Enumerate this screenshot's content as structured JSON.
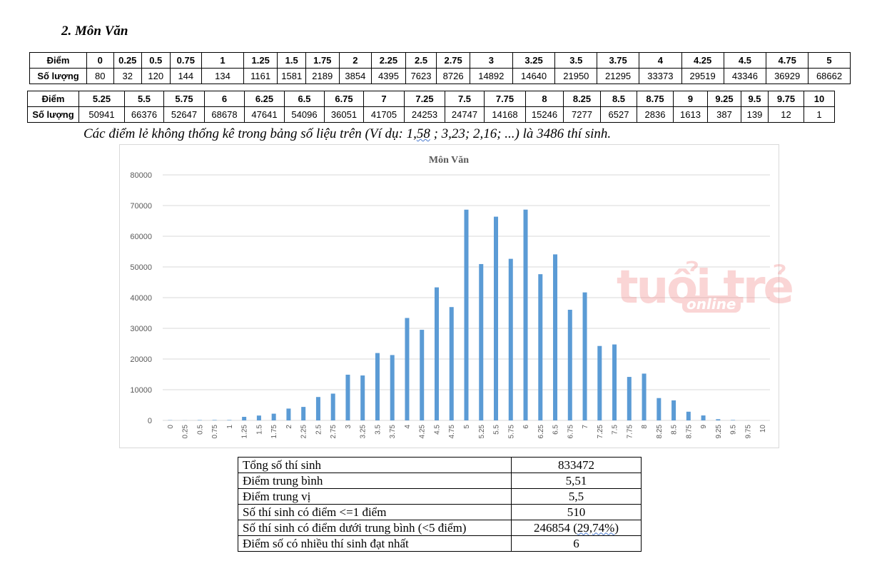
{
  "heading": "2.  Môn Văn",
  "table1": {
    "row_label_score": "Điểm",
    "row_label_count": "Số lượng",
    "scores": [
      "0",
      "0.25",
      "0.5",
      "0.75",
      "1",
      "1.25",
      "1.5",
      "1.75",
      "2",
      "2.25",
      "2.5",
      "2.75",
      "3",
      "3.25",
      "3.5",
      "3.75",
      "4",
      "4.25",
      "4.5",
      "4.75",
      "5"
    ],
    "counts": [
      "80",
      "32",
      "120",
      "144",
      "134",
      "1161",
      "1581",
      "2189",
      "3854",
      "4395",
      "7623",
      "8726",
      "14892",
      "14640",
      "21950",
      "21295",
      "33373",
      "29519",
      "43346",
      "36929",
      "68662"
    ]
  },
  "table2": {
    "row_label_score": "Điểm",
    "row_label_count": "Số lượng",
    "scores": [
      "5.25",
      "5.5",
      "5.75",
      "6",
      "6.25",
      "6.5",
      "6.75",
      "7",
      "7.25",
      "7.5",
      "7.75",
      "8",
      "8.25",
      "8.5",
      "8.75",
      "9",
      "9.25",
      "9.5",
      "9.75",
      "10"
    ],
    "counts": [
      "50941",
      "66376",
      "52647",
      "68678",
      "47641",
      "54096",
      "36051",
      "41705",
      "24253",
      "24747",
      "14168",
      "15246",
      "7277",
      "6527",
      "2836",
      "1613",
      "387",
      "139",
      "12",
      "1"
    ]
  },
  "note": {
    "part1": "Các điểm lẻ không thống kê trong bảng số liệu trên (Ví dụ: 1,",
    "u1": "58",
    "part2": " ; 3,23; 2,16; ...) là 3486 thí sinh."
  },
  "watermark": {
    "main": "tuổi trẻ",
    "sub": "online"
  },
  "chart_data": {
    "type": "bar",
    "title": "Môn Văn",
    "categories": [
      "0",
      "0.25",
      "0.5",
      "0.75",
      "1",
      "1.25",
      "1.5",
      "1.75",
      "2",
      "2.25",
      "2.5",
      "2.75",
      "3",
      "3.25",
      "3.5",
      "3.75",
      "4",
      "4.25",
      "4.5",
      "4.75",
      "5",
      "5.25",
      "5.5",
      "5.75",
      "6",
      "6.25",
      "6.5",
      "6.75",
      "7",
      "7.25",
      "7.5",
      "7.75",
      "8",
      "8.25",
      "8.5",
      "8.75",
      "9",
      "9.25",
      "9.5",
      "9.75",
      "10"
    ],
    "values": [
      80,
      32,
      120,
      144,
      134,
      1161,
      1581,
      2189,
      3854,
      4395,
      7623,
      8726,
      14892,
      14640,
      21950,
      21295,
      33373,
      29519,
      43346,
      36929,
      68662,
      50941,
      66376,
      52647,
      68678,
      47641,
      54096,
      36051,
      41705,
      24253,
      24747,
      14168,
      15246,
      7277,
      6527,
      2836,
      1613,
      387,
      139,
      12,
      1
    ],
    "ylim": [
      0,
      80000
    ],
    "yticks": [
      "0",
      "10000",
      "20000",
      "30000",
      "40000",
      "50000",
      "60000",
      "70000",
      "80000"
    ],
    "grid": true,
    "legend": "none",
    "bar_color": "#5b9bd5"
  },
  "stats": [
    {
      "label": "Tổng số thí sinh",
      "value": "833472"
    },
    {
      "label": "Điểm trung bình",
      "value": "5,51"
    },
    {
      "label": "Điểm trung vị",
      "value": "5,5"
    },
    {
      "label": "Số thí sinh có điểm <=1 điểm",
      "value": "510"
    },
    {
      "label": "Số thí sinh có điểm dưới trung bình (<5 điểm)",
      "value_main": "246854 (",
      "value_u": "29,74%",
      "value_end": ")"
    },
    {
      "label": "Điểm số có nhiều thí sinh đạt nhất",
      "value": "6"
    }
  ]
}
